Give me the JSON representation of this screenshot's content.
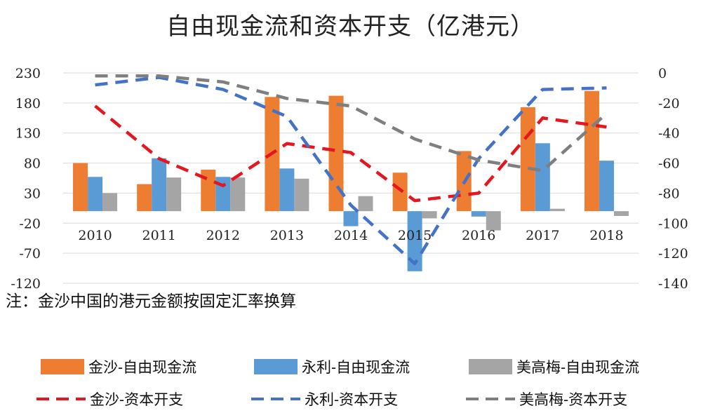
{
  "title": "自由现金流和资本开支（亿港元）",
  "note": "注：金沙中国的港元金额按固定汇率换算",
  "chart_data": {
    "type": "bar",
    "categories": [
      "2010",
      "2011",
      "2012",
      "2013",
      "2014",
      "2015",
      "2016",
      "2017",
      "2018"
    ],
    "left_axis": {
      "ylim": [
        -120,
        230
      ],
      "ticks": [
        230,
        180,
        130,
        80,
        30,
        -20,
        -70,
        -120
      ]
    },
    "right_axis": {
      "ylim": [
        -140,
        0
      ],
      "ticks": [
        0,
        -20,
        -40,
        -60,
        -80,
        -100,
        -120,
        -140
      ]
    },
    "bar_series": [
      {
        "name": "金沙-自由现金流",
        "color": "#ED7D31",
        "values": [
          80,
          45,
          69,
          190,
          192,
          64,
          100,
          173,
          200
        ]
      },
      {
        "name": "永利-自由现金流",
        "color": "#5B9BD5",
        "values": [
          57,
          88,
          57,
          71,
          -25,
          -100,
          -9,
          113,
          84
        ]
      },
      {
        "name": "美高梅-自由现金流",
        "color": "#A5A5A5",
        "values": [
          30,
          56,
          56,
          54,
          25,
          -12,
          -32,
          4,
          -8
        ]
      }
    ],
    "line_series": [
      {
        "name": "金沙-资本开支",
        "color": "#E2171F",
        "values": [
          -22,
          -57,
          -75,
          -47,
          -53,
          -85,
          -80,
          -30,
          -36
        ]
      },
      {
        "name": "永利-资本开支",
        "color": "#4472C4",
        "values": [
          -8,
          -3,
          -11,
          -29,
          -88,
          -127,
          -57,
          -11,
          -10
        ]
      },
      {
        "name": "美高梅-资本开支",
        "color": "#7F7F7F",
        "values": [
          -2,
          -2,
          -6,
          -17,
          -22,
          -44,
          -58,
          -65,
          -27
        ]
      }
    ]
  },
  "legend": [
    {
      "label": "金沙-自由现金流",
      "kind": "bar",
      "color": "#ED7D31"
    },
    {
      "label": "永利-自由现金流",
      "kind": "bar",
      "color": "#5B9BD5"
    },
    {
      "label": "美高梅-自由现金流",
      "kind": "bar",
      "color": "#A5A5A5"
    },
    {
      "label": "金沙-资本开支",
      "kind": "line",
      "color": "#E2171F"
    },
    {
      "label": "永利-资本开支",
      "kind": "line",
      "color": "#4472C4"
    },
    {
      "label": "美高梅-资本开支",
      "kind": "line",
      "color": "#7F7F7F"
    }
  ]
}
